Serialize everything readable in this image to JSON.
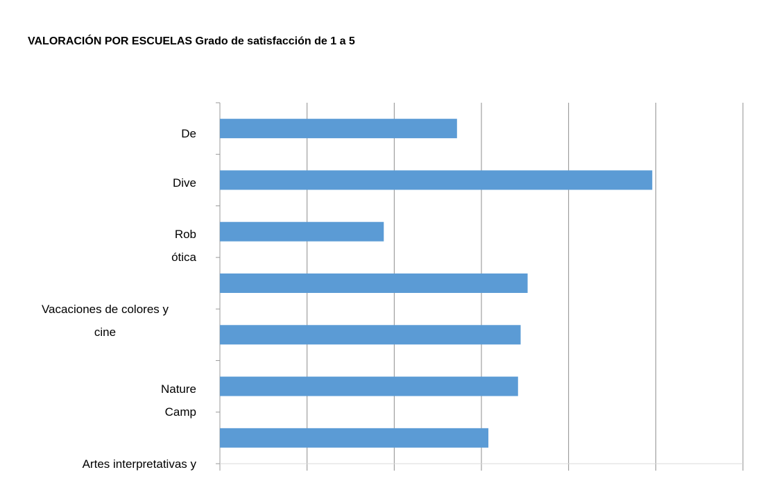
{
  "chart_data": {
    "type": "barh",
    "title": "VALORACIÓN POR ESCUELAS Grado de satisfacción de 1 a 5",
    "categories": [
      "De",
      "Dive",
      "Rob\nótica",
      null,
      "Vacaciones de colores y\ncine",
      "Nature\nCamp",
      "Artes interpretativas y"
    ],
    "values": [
      2.72,
      4.96,
      1.88,
      3.53,
      3.45,
      3.42,
      3.08
    ],
    "color": "#5b9bd5",
    "xlim": [
      0,
      6
    ],
    "xticks": [
      0,
      1,
      2,
      3,
      4,
      5,
      6
    ],
    "grid": true
  }
}
